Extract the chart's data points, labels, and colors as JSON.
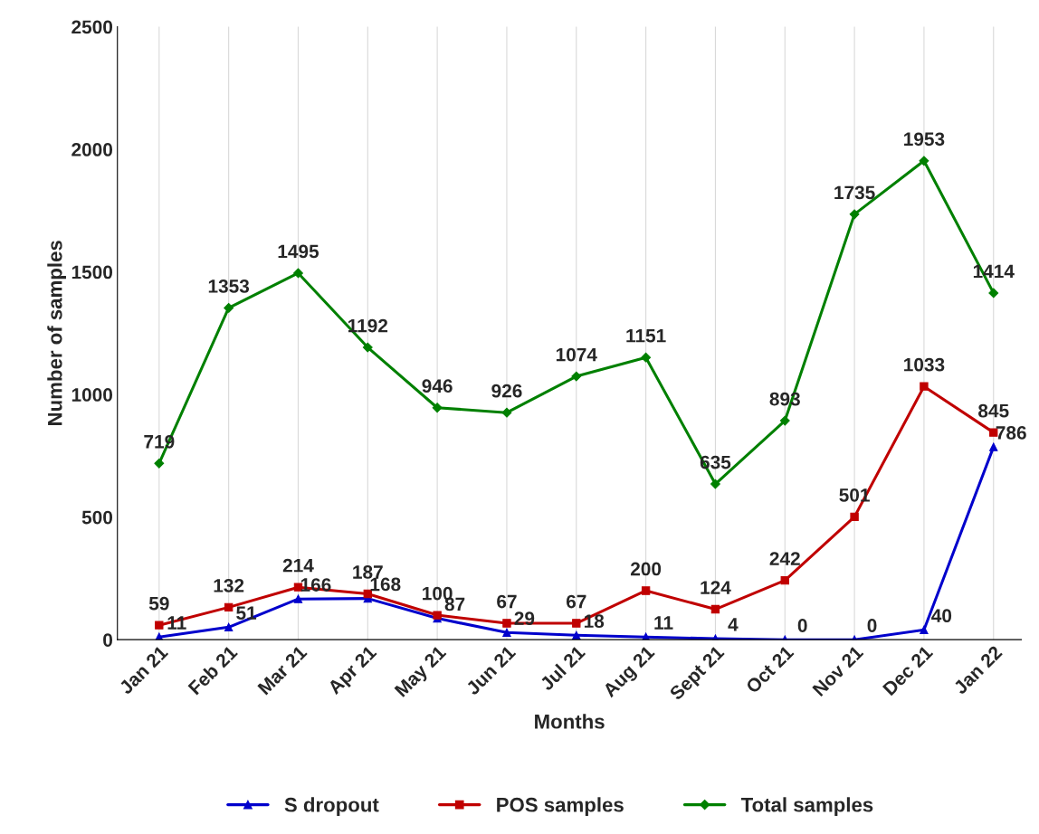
{
  "chart_data": {
    "type": "line",
    "xlabel": "Months",
    "ylabel": "Number of samples",
    "categories": [
      "Jan 21",
      "Feb 21",
      "Mar 21",
      "Apr 21",
      "May 21",
      "Jun 21",
      "Jul 21",
      "Aug 21",
      "Sept 21",
      "Oct 21",
      "Nov 21",
      "Dec 21",
      "Jan 22"
    ],
    "series": [
      {
        "name": "S dropout",
        "color": "#0000cc",
        "marker": "triangle",
        "values": [
          11,
          51,
          166,
          168,
          87,
          29,
          18,
          11,
          4,
          0,
          0,
          40,
          786
        ]
      },
      {
        "name": "POS samples",
        "color": "#c00000",
        "marker": "square",
        "values": [
          59,
          132,
          214,
          187,
          100,
          67,
          67,
          200,
          124,
          242,
          501,
          1033,
          845
        ]
      },
      {
        "name": "Total samples",
        "color": "#008000",
        "marker": "diamond",
        "values": [
          719,
          1353,
          1495,
          1192,
          946,
          926,
          1074,
          1151,
          635,
          893,
          1735,
          1953,
          1414
        ]
      }
    ],
    "ylim": [
      0,
      2500
    ],
    "yticks": [
      0,
      500,
      1000,
      1500,
      2000,
      2500
    ],
    "grid": "x",
    "legend": "bottom",
    "data_labels": true,
    "line_style": "solid"
  }
}
